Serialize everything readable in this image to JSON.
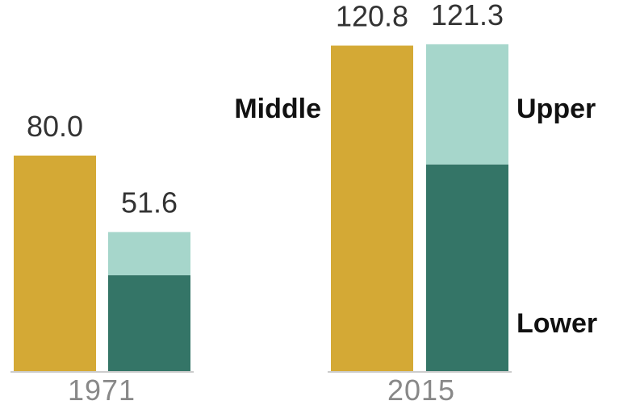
{
  "chart_data": {
    "type": "bar",
    "categories": [
      "1971",
      "2015"
    ],
    "series": [
      {
        "name": "Middle",
        "values": [
          80.0,
          120.8
        ]
      },
      {
        "name": "Lower",
        "values": [
          35.6,
          76.7
        ]
      },
      {
        "name": "Upper",
        "values": [
          16.0,
          44.6
        ]
      }
    ],
    "totals_labels": {
      "middle": [
        "80.0",
        "120.8"
      ],
      "upper_lower": [
        "51.6",
        "121.3"
      ]
    },
    "series_labels": {
      "middle": "Middle",
      "upper": "Upper",
      "lower": "Lower"
    },
    "colors": {
      "middle": "#d4a935",
      "upper": "#a6d6cb",
      "lower": "#347567",
      "baseline": "#cccccc"
    },
    "stacked_second_bar": true,
    "ylim": [
      0,
      125
    ],
    "grid": false,
    "legend": "inline labels"
  }
}
